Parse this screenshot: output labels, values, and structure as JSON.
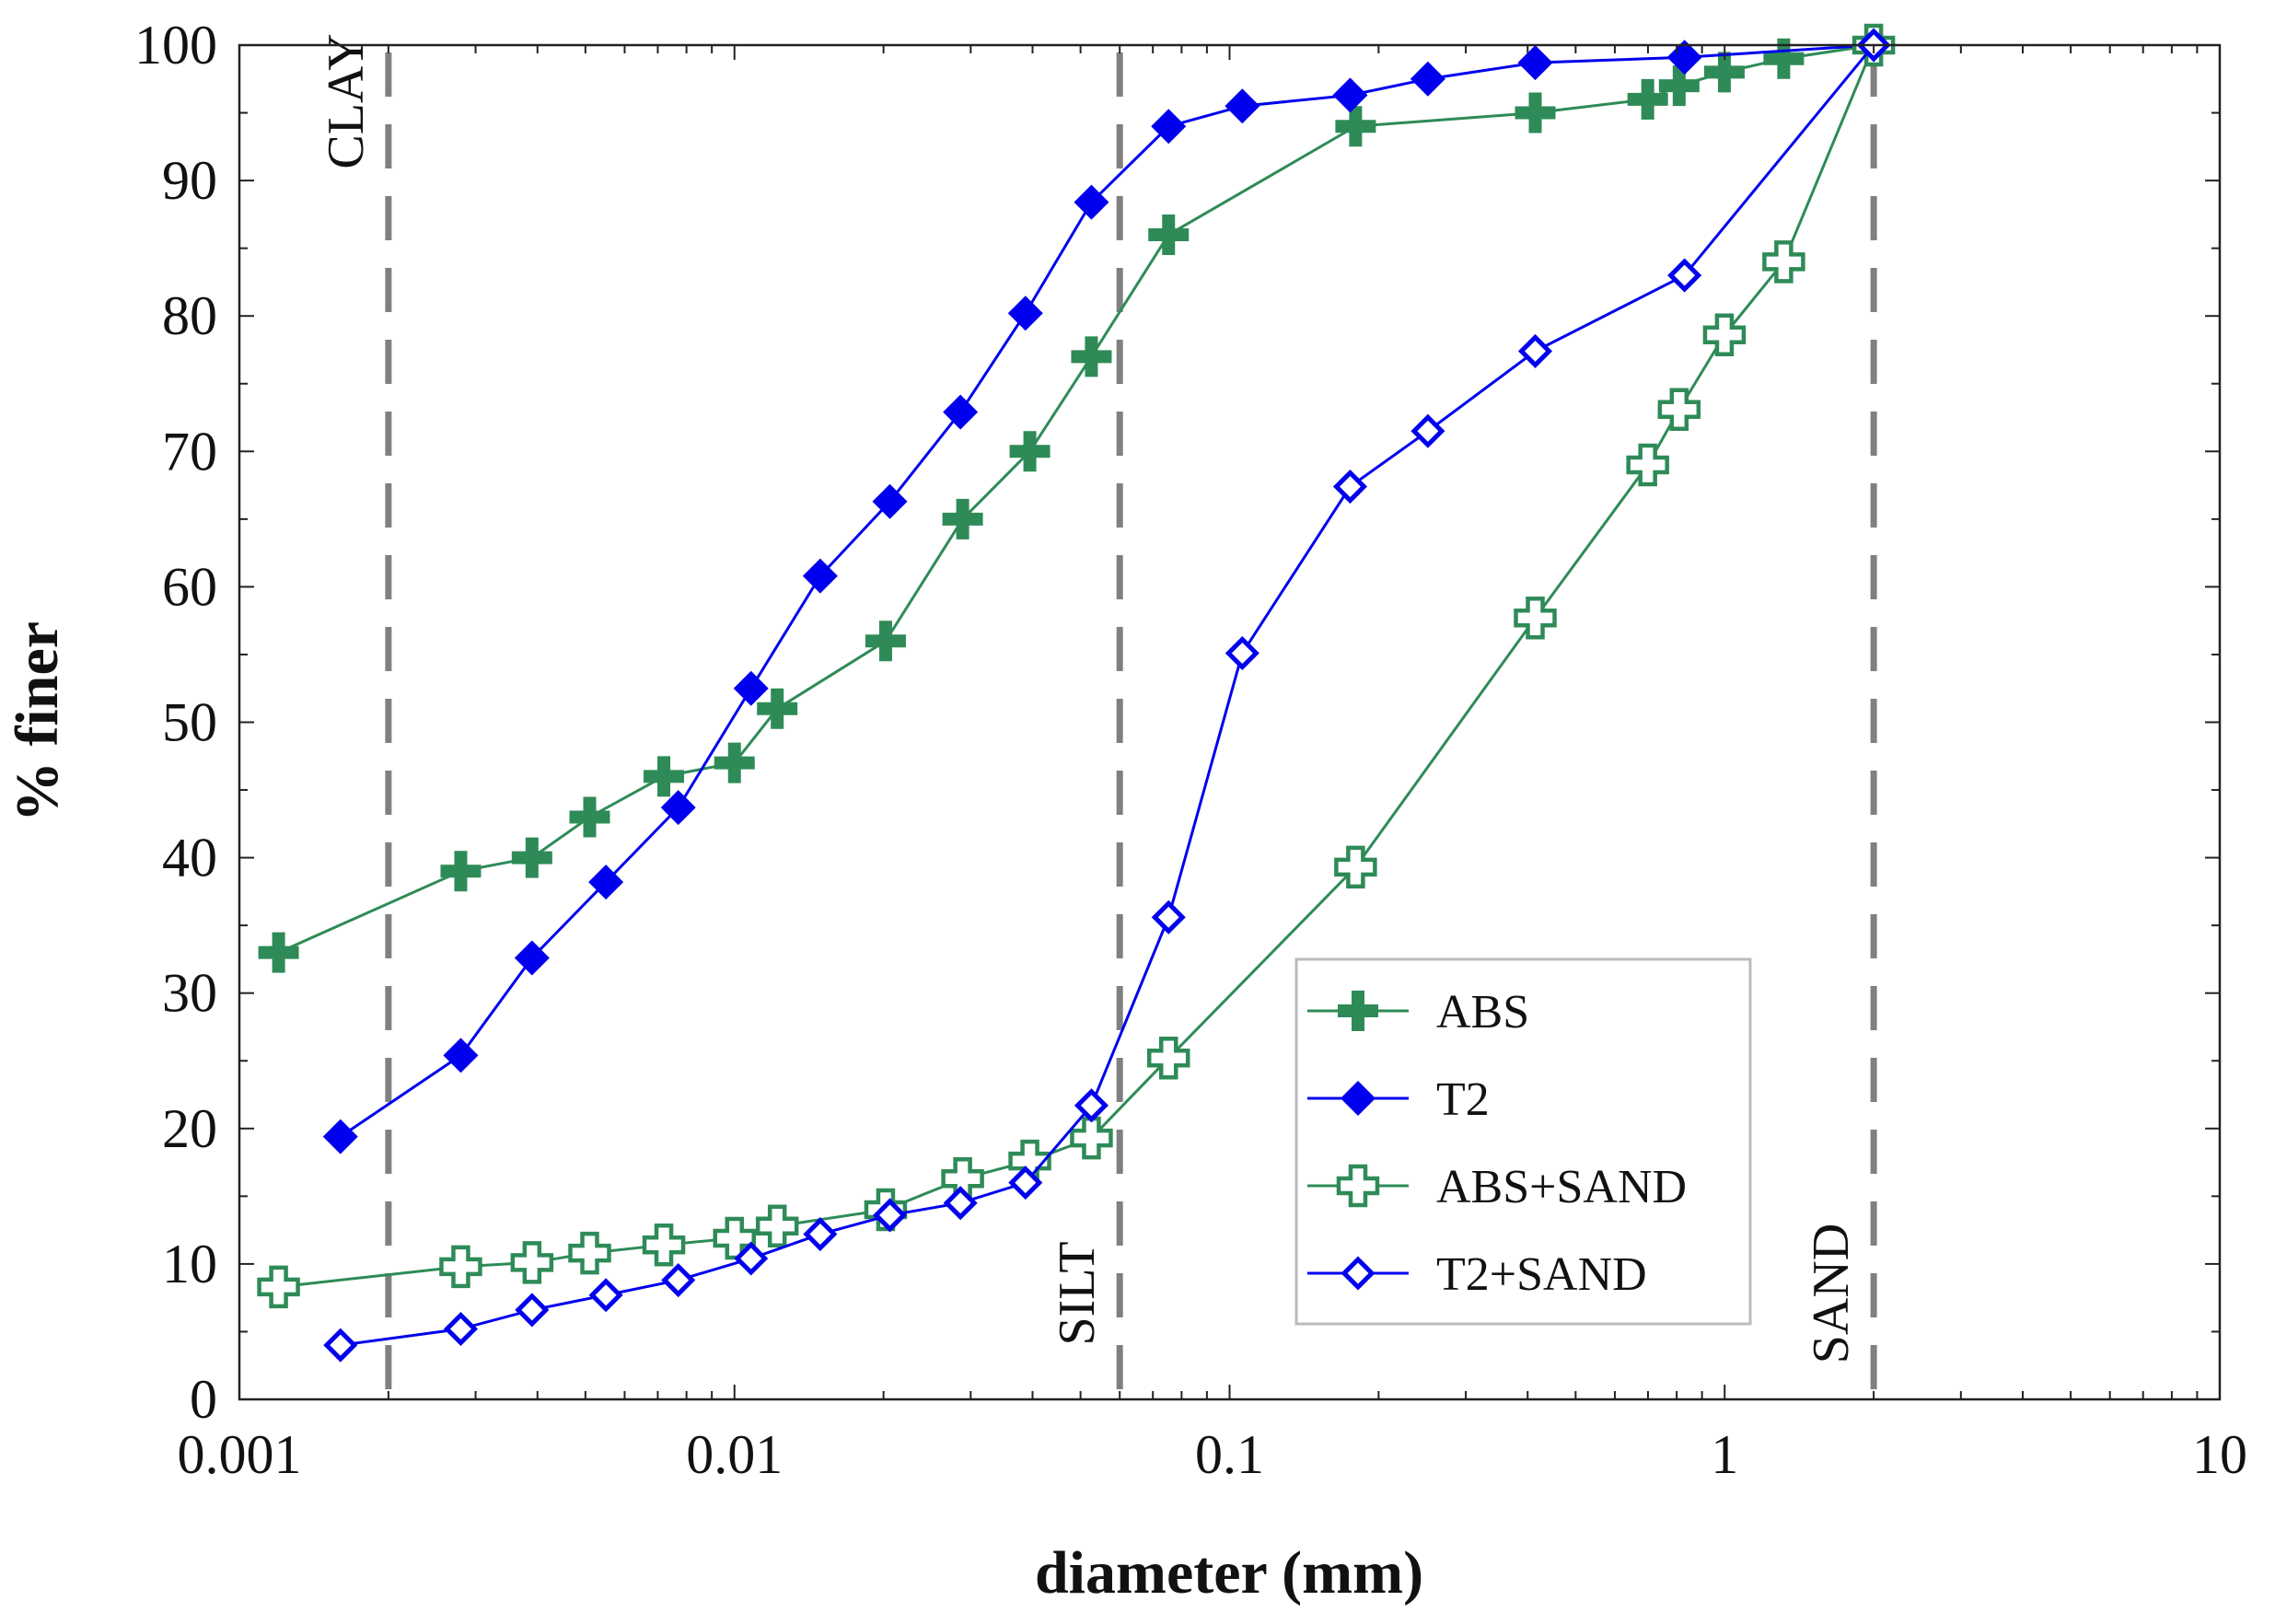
{
  "chart_data": {
    "type": "line",
    "title": "",
    "xlabel": "diameter (mm)",
    "ylabel": "% finer",
    "xscale": "log",
    "xlim": [
      0.001,
      10
    ],
    "ylim": [
      0,
      100
    ],
    "grid": false,
    "legend_position": "bottom-right",
    "x_ticks": [
      {
        "value": 0.001,
        "label": "0.001"
      },
      {
        "value": 0.01,
        "label": "0.01"
      },
      {
        "value": 0.1,
        "label": "0.1"
      },
      {
        "value": 1,
        "label": "1"
      },
      {
        "value": 10,
        "label": "10"
      }
    ],
    "y_ticks": [
      {
        "value": 0,
        "label": "0"
      },
      {
        "value": 10,
        "label": "10"
      },
      {
        "value": 20,
        "label": "20"
      },
      {
        "value": 30,
        "label": "30"
      },
      {
        "value": 40,
        "label": "40"
      },
      {
        "value": 50,
        "label": "50"
      },
      {
        "value": 60,
        "label": "60"
      },
      {
        "value": 70,
        "label": "70"
      },
      {
        "value": 80,
        "label": "80"
      },
      {
        "value": 90,
        "label": "90"
      },
      {
        "value": 100,
        "label": "100"
      }
    ],
    "reference_lines": [
      {
        "x": 0.002,
        "label": "CLAY",
        "color": "#808080"
      },
      {
        "x": 0.06,
        "label": "SILT",
        "color": "#808080"
      },
      {
        "x": 2,
        "label": "SAND",
        "color": "#808080"
      }
    ],
    "series": [
      {
        "name": "ABS",
        "color": "#2e8b57",
        "marker": "plus-filled",
        "x": [
          0.0012,
          0.0028,
          0.0039,
          0.0051,
          0.0072,
          0.01,
          0.0122,
          0.0202,
          0.0289,
          0.0395,
          0.0526,
          0.0753,
          0.1797,
          0.4144,
          0.6992,
          0.8093,
          0.9987,
          1.3161,
          2.0
        ],
        "y": [
          33,
          39,
          40,
          43,
          46,
          47,
          51,
          56,
          65,
          70,
          77,
          86,
          94,
          95,
          96,
          97,
          98,
          99,
          100
        ]
      },
      {
        "name": "T2",
        "color": "#0000ee",
        "marker": "diamond-filled",
        "x": [
          0.0016,
          0.0028,
          0.0039,
          0.0055,
          0.0077,
          0.0108,
          0.0149,
          0.0206,
          0.0286,
          0.0387,
          0.0526,
          0.0753,
          0.1061,
          0.1752,
          0.2515,
          0.4144,
          0.8297,
          2.0
        ],
        "y": [
          19.4,
          25.4,
          32.6,
          38.2,
          43.7,
          52.5,
          60.8,
          66.3,
          72.9,
          80.2,
          88.4,
          94,
          95.5,
          96.3,
          97.5,
          98.7,
          99.1,
          100
        ]
      },
      {
        "name": "ABS+SAND",
        "color": "#2e8b57",
        "marker": "plus-open",
        "x": [
          0.0012,
          0.0028,
          0.0039,
          0.0051,
          0.0072,
          0.01,
          0.0122,
          0.0202,
          0.0289,
          0.0395,
          0.0526,
          0.0753,
          0.1797,
          0.4144,
          0.6992,
          0.8093,
          0.9987,
          1.3161,
          2.0
        ],
        "y": [
          8.3,
          9.8,
          10.1,
          10.8,
          11.4,
          11.9,
          12.8,
          14,
          16.3,
          17.6,
          19.3,
          25.2,
          39.3,
          57.7,
          69,
          73.1,
          78.6,
          84,
          100
        ]
      },
      {
        "name": "T2+SAND",
        "color": "#0000ee",
        "marker": "diamond-open",
        "x": [
          0.0016,
          0.0028,
          0.0039,
          0.0055,
          0.0077,
          0.0108,
          0.0149,
          0.0206,
          0.0286,
          0.0387,
          0.0526,
          0.0753,
          0.1061,
          0.1752,
          0.2515,
          0.4144,
          0.8297,
          2.0
        ],
        "y": [
          4,
          5.2,
          6.6,
          7.7,
          8.8,
          10.4,
          12.2,
          13.6,
          14.5,
          16,
          21.7,
          35.6,
          55.1,
          67.4,
          71.5,
          77.4,
          83,
          100
        ]
      }
    ]
  }
}
